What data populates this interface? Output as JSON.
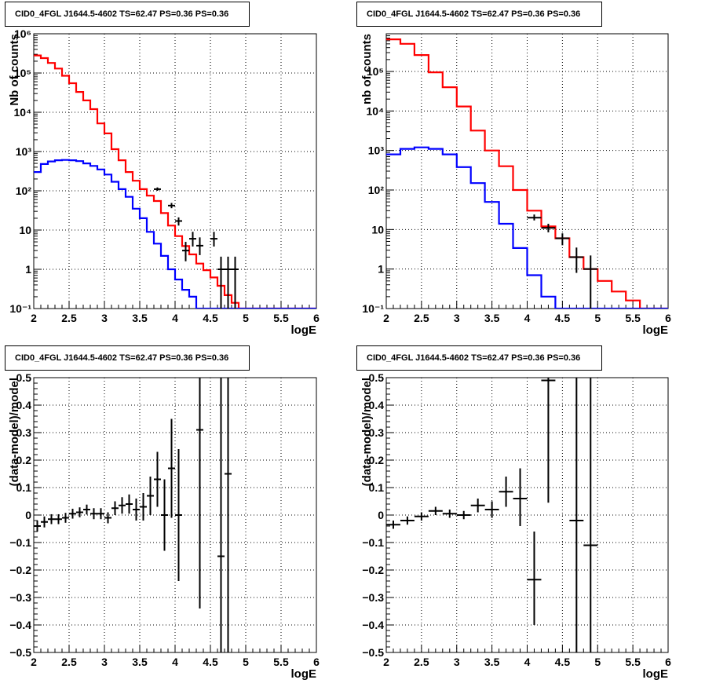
{
  "chart_data": [
    {
      "type": "line",
      "title": "CID0_4FGL J1644.5-4602 TS=62.47 PS=0.36 PS=0.36",
      "xlabel": "logE",
      "ylabel": "Nb of counts",
      "xlim": [
        2,
        6
      ],
      "ylim": [
        0.1,
        1000000
      ],
      "yscale": "log",
      "grid": true,
      "x_ticks": [
        "2",
        "2.5",
        "3",
        "3.5",
        "4",
        "4.5",
        "5",
        "5.5",
        "6"
      ],
      "y_ticks": [
        "10⁻¹",
        "1",
        "10",
        "10²",
        "10³",
        "10⁴",
        "10⁵",
        "10⁶"
      ],
      "series": [
        {
          "color": "#ff0000",
          "style": "step",
          "edges": [
            2.0,
            2.1,
            2.2,
            2.3,
            2.4,
            2.5,
            2.6,
            2.7,
            2.8,
            2.9,
            3.0,
            3.1,
            3.2,
            3.3,
            3.4,
            3.5,
            3.6,
            3.7,
            3.8,
            3.9,
            4.0,
            4.1,
            4.2,
            4.3,
            4.4,
            4.5,
            4.6,
            4.7,
            4.8,
            4.9,
            5.0,
            5.1,
            5.2,
            5.3,
            5.4,
            5.5,
            5.6,
            5.7,
            5.8,
            5.9,
            6.0
          ],
          "values": [
            280000,
            240000,
            180000,
            130000,
            85000,
            55000,
            33000,
            20000,
            12000,
            5200,
            2900,
            1150,
            600,
            300,
            180,
            110,
            75,
            55,
            27,
            13,
            7,
            3.9,
            2.4,
            1.4,
            0.95,
            0.62,
            0.38,
            0.22,
            0.14,
            0.1,
            0.1,
            0.1,
            0.1,
            0.1,
            0.1,
            0.1,
            0.1,
            0.1,
            0.1,
            0.1
          ]
        },
        {
          "color": "#0000ff",
          "style": "step",
          "edges": [
            2.0,
            2.1,
            2.2,
            2.3,
            2.4,
            2.5,
            2.6,
            2.7,
            2.8,
            2.9,
            3.0,
            3.1,
            3.2,
            3.3,
            3.4,
            3.5,
            3.6,
            3.7,
            3.8,
            3.9,
            4.0,
            4.1,
            4.2,
            4.3,
            4.4,
            4.5,
            4.6,
            4.7,
            4.8,
            4.9,
            5.0,
            5.1,
            5.2,
            5.3,
            5.4,
            5.5,
            5.6,
            5.7,
            5.8,
            5.9,
            6.0
          ],
          "values": [
            300,
            480,
            560,
            600,
            610,
            600,
            570,
            500,
            430,
            350,
            260,
            170,
            110,
            70,
            35,
            20,
            9,
            4.5,
            2.2,
            1.0,
            0.55,
            0.3,
            0.2,
            0.1,
            0.1,
            0.1,
            0.1,
            0.1,
            0.1,
            0.1,
            0.1,
            0.1,
            0.1,
            0.1,
            0.1,
            0.1,
            0.1,
            0.1,
            0.1,
            0.1
          ]
        }
      ],
      "points": [
        {
          "x": 3.75,
          "y": 110,
          "xerr": 0.05,
          "ylo": 100,
          "yhi": 122
        },
        {
          "x": 3.95,
          "y": 42,
          "xerr": 0.05,
          "ylo": 36,
          "yhi": 49
        },
        {
          "x": 4.05,
          "y": 17,
          "xerr": 0.05,
          "ylo": 13,
          "yhi": 21
        },
        {
          "x": 4.15,
          "y": 3,
          "xerr": 0.05,
          "ylo": 1.6,
          "yhi": 5
        },
        {
          "x": 4.25,
          "y": 6,
          "xerr": 0.05,
          "ylo": 3.8,
          "yhi": 9
        },
        {
          "x": 4.35,
          "y": 4,
          "xerr": 0.05,
          "ylo": 2.3,
          "yhi": 6.5
        },
        {
          "x": 4.55,
          "y": 6,
          "xerr": 0.05,
          "ylo": 3.8,
          "yhi": 9
        },
        {
          "x": 4.65,
          "y": 1,
          "xerr": 0.05,
          "ylo": 0.1,
          "yhi": 2.1
        },
        {
          "x": 4.75,
          "y": 1,
          "xerr": 0.05,
          "ylo": 0.1,
          "yhi": 2.1
        },
        {
          "x": 4.85,
          "y": 1,
          "xerr": 0.05,
          "ylo": 0.1,
          "yhi": 2.1
        }
      ]
    },
    {
      "type": "line",
      "title": "CID0_4FGL J1644.5-4602 TS=62.47 PS=0.36 PS=0.36",
      "xlabel": "logE",
      "ylabel": "nb of counts",
      "xlim": [
        2,
        6
      ],
      "ylim": [
        0.1,
        900000
      ],
      "yscale": "log",
      "grid": true,
      "x_ticks": [
        "2",
        "2.5",
        "3",
        "3.5",
        "4",
        "4.5",
        "5",
        "5.5",
        "6"
      ],
      "y_ticks": [
        "10⁻¹",
        "1",
        "10",
        "10²",
        "10³",
        "10⁴",
        "10⁵"
      ],
      "series": [
        {
          "color": "#ff0000",
          "style": "step",
          "edges": [
            2.0,
            2.2,
            2.4,
            2.6,
            2.8,
            3.0,
            3.2,
            3.4,
            3.6,
            3.8,
            4.0,
            4.2,
            4.4,
            4.6,
            4.8,
            5.0,
            5.2,
            5.4,
            5.6,
            5.8,
            6.0
          ],
          "values": [
            650000,
            500000,
            260000,
            95000,
            40000,
            13000,
            3200,
            1000,
            400,
            100,
            30,
            12,
            6,
            2,
            1.0,
            0.5,
            0.27,
            0.16,
            0.1,
            0.1
          ]
        },
        {
          "color": "#0000ff",
          "style": "step",
          "edges": [
            2.0,
            2.2,
            2.4,
            2.6,
            2.8,
            3.0,
            3.2,
            3.4,
            3.6,
            3.8,
            4.0,
            4.2,
            4.4,
            4.6,
            4.8,
            5.0,
            5.2,
            5.4,
            5.6,
            5.8,
            6.0
          ],
          "values": [
            800,
            1100,
            1200,
            1100,
            800,
            380,
            150,
            50,
            14,
            3.4,
            0.7,
            0.2,
            0.1,
            0.1,
            0.1,
            0.1,
            0.1,
            0.1,
            0.1,
            0.1
          ]
        }
      ],
      "points": [
        {
          "x": 4.1,
          "y": 20,
          "xerr": 0.1,
          "ylo": 17,
          "yhi": 24
        },
        {
          "x": 4.3,
          "y": 11,
          "xerr": 0.1,
          "ylo": 8.5,
          "yhi": 14
        },
        {
          "x": 4.5,
          "y": 6,
          "xerr": 0.1,
          "ylo": 4,
          "yhi": 8
        },
        {
          "x": 4.7,
          "y": 2,
          "xerr": 0.1,
          "ylo": 0.8,
          "yhi": 3.5
        },
        {
          "x": 4.9,
          "y": 1,
          "xerr": 0.1,
          "ylo": 0.1,
          "yhi": 2.2
        }
      ]
    },
    {
      "type": "scatter",
      "title": "CID0_4FGL J1644.5-4602 TS=62.47 PS=0.36 PS=0.36",
      "xlabel": "logE",
      "ylabel": "(data-model)/model",
      "xlim": [
        2,
        6
      ],
      "ylim": [
        -0.5,
        0.5
      ],
      "yscale": "linear",
      "grid": true,
      "x_ticks": [
        "2",
        "2.5",
        "3",
        "3.5",
        "4",
        "4.5",
        "5",
        "5.5",
        "6"
      ],
      "y_ticks": [
        "−0.5",
        "−0.4",
        "−0.3",
        "−0.2",
        "−0.1",
        "0",
        "0.1",
        "0.2",
        "0.3",
        "0.4",
        "0.5"
      ],
      "y_tick_values": [
        -0.5,
        -0.4,
        -0.3,
        -0.2,
        -0.1,
        0,
        0.1,
        0.2,
        0.3,
        0.4,
        0.5
      ],
      "points": [
        {
          "x": 2.05,
          "y": -0.04,
          "xerr": 0.05,
          "ylo": -0.06,
          "yhi": -0.02
        },
        {
          "x": 2.15,
          "y": -0.025,
          "xerr": 0.05,
          "ylo": -0.045,
          "yhi": -0.005
        },
        {
          "x": 2.25,
          "y": -0.015,
          "xerr": 0.05,
          "ylo": -0.033,
          "yhi": 0.003
        },
        {
          "x": 2.35,
          "y": -0.015,
          "xerr": 0.05,
          "ylo": -0.033,
          "yhi": 0.003
        },
        {
          "x": 2.45,
          "y": -0.01,
          "xerr": 0.05,
          "ylo": -0.028,
          "yhi": 0.008
        },
        {
          "x": 2.55,
          "y": 0.005,
          "xerr": 0.05,
          "ylo": -0.013,
          "yhi": 0.023
        },
        {
          "x": 2.65,
          "y": 0.01,
          "xerr": 0.05,
          "ylo": -0.008,
          "yhi": 0.028
        },
        {
          "x": 2.75,
          "y": 0.02,
          "xerr": 0.05,
          "ylo": 0.002,
          "yhi": 0.038
        },
        {
          "x": 2.85,
          "y": 0.005,
          "xerr": 0.05,
          "ylo": -0.015,
          "yhi": 0.025
        },
        {
          "x": 2.95,
          "y": 0.005,
          "xerr": 0.05,
          "ylo": -0.015,
          "yhi": 0.025
        },
        {
          "x": 3.05,
          "y": -0.01,
          "xerr": 0.05,
          "ylo": -0.03,
          "yhi": 0.01
        },
        {
          "x": 3.15,
          "y": 0.025,
          "xerr": 0.05,
          "ylo": 0.0,
          "yhi": 0.05
        },
        {
          "x": 3.25,
          "y": 0.035,
          "xerr": 0.05,
          "ylo": 0.005,
          "yhi": 0.065
        },
        {
          "x": 3.35,
          "y": 0.04,
          "xerr": 0.05,
          "ylo": 0.005,
          "yhi": 0.075
        },
        {
          "x": 3.45,
          "y": 0.02,
          "xerr": 0.05,
          "ylo": -0.02,
          "yhi": 0.06
        },
        {
          "x": 3.55,
          "y": 0.03,
          "xerr": 0.05,
          "ylo": -0.02,
          "yhi": 0.08
        },
        {
          "x": 3.65,
          "y": 0.07,
          "xerr": 0.05,
          "ylo": 0.0,
          "yhi": 0.14
        },
        {
          "x": 3.75,
          "y": 0.13,
          "xerr": 0.05,
          "ylo": 0.03,
          "yhi": 0.23
        },
        {
          "x": 3.85,
          "y": 0.0,
          "xerr": 0.05,
          "ylo": -0.13,
          "yhi": 0.13
        },
        {
          "x": 3.95,
          "y": 0.17,
          "xerr": 0.05,
          "ylo": -0.01,
          "yhi": 0.35
        },
        {
          "x": 4.05,
          "y": 0.0,
          "xerr": 0.05,
          "ylo": -0.24,
          "yhi": 0.24
        },
        {
          "x": 4.35,
          "y": 0.31,
          "xerr": 0.05,
          "ylo": -0.34,
          "yhi": 0.5
        },
        {
          "x": 4.65,
          "y": -0.15,
          "xerr": 0.05,
          "ylo": -0.5,
          "yhi": 0.5
        },
        {
          "x": 4.75,
          "y": 0.15,
          "xerr": 0.05,
          "ylo": -0.5,
          "yhi": 0.5
        }
      ]
    },
    {
      "type": "scatter",
      "title": "CID0_4FGL J1644.5-4602 TS=62.47 PS=0.36 PS=0.36",
      "xlabel": "logE",
      "ylabel": "(data-model)/model",
      "xlim": [
        2,
        6
      ],
      "ylim": [
        -0.5,
        0.5
      ],
      "yscale": "linear",
      "grid": true,
      "x_ticks": [
        "2",
        "2.5",
        "3",
        "3.5",
        "4",
        "4.5",
        "5",
        "5.5",
        "6"
      ],
      "y_ticks": [
        "−0.5",
        "−0.4",
        "−0.3",
        "−0.2",
        "−0.1",
        "0",
        "0.1",
        "0.2",
        "0.3",
        "0.4",
        "0.5"
      ],
      "y_tick_values": [
        -0.5,
        -0.4,
        -0.3,
        -0.2,
        -0.1,
        0,
        0.1,
        0.2,
        0.3,
        0.4,
        0.5
      ],
      "points": [
        {
          "x": 2.1,
          "y": -0.035,
          "xerr": 0.1,
          "ylo": -0.05,
          "yhi": -0.02
        },
        {
          "x": 2.3,
          "y": -0.02,
          "xerr": 0.1,
          "ylo": -0.035,
          "yhi": -0.005
        },
        {
          "x": 2.5,
          "y": -0.005,
          "xerr": 0.1,
          "ylo": -0.02,
          "yhi": 0.01
        },
        {
          "x": 2.7,
          "y": 0.015,
          "xerr": 0.1,
          "ylo": 0.0,
          "yhi": 0.03
        },
        {
          "x": 2.9,
          "y": 0.005,
          "xerr": 0.1,
          "ylo": -0.01,
          "yhi": 0.02
        },
        {
          "x": 3.1,
          "y": 0.0,
          "xerr": 0.1,
          "ylo": -0.015,
          "yhi": 0.015
        },
        {
          "x": 3.3,
          "y": 0.035,
          "xerr": 0.1,
          "ylo": 0.01,
          "yhi": 0.06
        },
        {
          "x": 3.5,
          "y": 0.02,
          "xerr": 0.1,
          "ylo": -0.01,
          "yhi": 0.05
        },
        {
          "x": 3.7,
          "y": 0.085,
          "xerr": 0.1,
          "ylo": 0.03,
          "yhi": 0.14
        },
        {
          "x": 3.9,
          "y": 0.06,
          "xerr": 0.1,
          "ylo": -0.04,
          "yhi": 0.17
        },
        {
          "x": 4.1,
          "y": -0.235,
          "xerr": 0.1,
          "ylo": -0.4,
          "yhi": -0.06
        },
        {
          "x": 4.3,
          "y": 0.49,
          "xerr": 0.1,
          "ylo": 0.045,
          "yhi": 0.5
        },
        {
          "x": 4.7,
          "y": -0.02,
          "xerr": 0.1,
          "ylo": -0.5,
          "yhi": 0.5
        },
        {
          "x": 4.9,
          "y": -0.11,
          "xerr": 0.1,
          "ylo": -0.5,
          "yhi": 0.5
        }
      ]
    }
  ]
}
